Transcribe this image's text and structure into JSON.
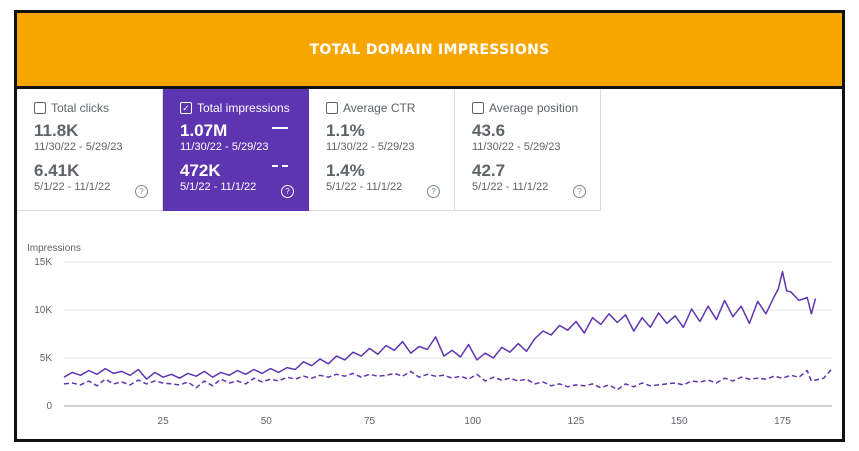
{
  "banner": {
    "title": "TOTAL DOMAIN IMPRESSIONS"
  },
  "cards": [
    {
      "label": "Total clicks",
      "checked": false,
      "current_value": "11.8K",
      "current_range": "11/30/22 - 5/29/23",
      "previous_value": "6.41K",
      "previous_range": "5/1/22 - 11/1/22",
      "help": "?"
    },
    {
      "label": "Total impressions",
      "checked": true,
      "current_value": "1.07M",
      "current_range": "11/30/22 - 5/29/23",
      "previous_value": "472K",
      "previous_range": "5/1/22 - 11/1/22",
      "help": "?"
    },
    {
      "label": "Average CTR",
      "checked": false,
      "current_value": "1.1%",
      "current_range": "11/30/22 - 5/29/23",
      "previous_value": "1.4%",
      "previous_range": "5/1/22 - 11/1/22",
      "help": "?"
    },
    {
      "label": "Average position",
      "checked": false,
      "current_value": "43.6",
      "current_range": "11/30/22 - 5/29/23",
      "previous_value": "42.7",
      "previous_range": "5/1/22 - 11/1/22",
      "help": "?"
    }
  ],
  "colors": {
    "banner": "#f7a600",
    "accent": "#5e35b1",
    "text": "#5f6368"
  },
  "chart_data": {
    "type": "line",
    "ylabel": "Impressions",
    "ylim": [
      0,
      15000
    ],
    "xlim": [
      1,
      187
    ],
    "y_ticks": [
      0,
      5000,
      10000,
      15000
    ],
    "y_tick_labels": [
      "0",
      "5K",
      "10K",
      "15K"
    ],
    "x_ticks": [
      25,
      50,
      75,
      100,
      125,
      150,
      175
    ],
    "grid": true,
    "series": [
      {
        "style": "solid",
        "color": "#5e35b1",
        "x": [
          1,
          3,
          5,
          7,
          9,
          11,
          13,
          15,
          17,
          19,
          21,
          23,
          25,
          27,
          29,
          31,
          33,
          35,
          37,
          39,
          41,
          43,
          45,
          47,
          49,
          51,
          53,
          55,
          57,
          59,
          61,
          63,
          65,
          67,
          69,
          71,
          73,
          75,
          77,
          79,
          81,
          83,
          85,
          87,
          89,
          91,
          93,
          95,
          97,
          99,
          101,
          103,
          105,
          107,
          109,
          111,
          113,
          115,
          117,
          119,
          121,
          123,
          125,
          127,
          129,
          131,
          133,
          135,
          137,
          139,
          141,
          143,
          145,
          147,
          149,
          151,
          153,
          155,
          157,
          159,
          161,
          163,
          165,
          167,
          169,
          171,
          173,
          174,
          175,
          176,
          177,
          179,
          181,
          182,
          183
        ],
        "values": [
          3000,
          3500,
          3200,
          3700,
          3300,
          3900,
          3400,
          3600,
          3200,
          3800,
          2800,
          3500,
          3000,
          3300,
          2900,
          3400,
          3100,
          3600,
          3000,
          3500,
          3200,
          3700,
          3300,
          3800,
          3400,
          3900,
          3500,
          4000,
          3800,
          4600,
          4200,
          4900,
          4400,
          5200,
          4800,
          5600,
          5200,
          6000,
          5400,
          6300,
          5800,
          6700,
          5500,
          6200,
          5900,
          7200,
          5200,
          5800,
          5100,
          6400,
          4800,
          5500,
          5000,
          6100,
          5600,
          6500,
          5700,
          7000,
          7800,
          7400,
          8400,
          7900,
          8800,
          7600,
          9200,
          8500,
          9600,
          8700,
          9500,
          7800,
          9200,
          8200,
          9700,
          8600,
          9400,
          8200,
          10100,
          8800,
          10400,
          9000,
          11000,
          9300,
          10400,
          8600,
          10900,
          9600,
          11400,
          12200,
          14000,
          12000,
          11900,
          11000,
          11300,
          9600,
          11200
        ]
      },
      {
        "style": "dashed",
        "color": "#5e35b1",
        "x": [
          1,
          3,
          5,
          7,
          9,
          11,
          13,
          15,
          17,
          19,
          21,
          23,
          25,
          27,
          29,
          31,
          33,
          35,
          37,
          39,
          41,
          43,
          45,
          47,
          49,
          51,
          53,
          55,
          57,
          59,
          61,
          63,
          65,
          67,
          69,
          71,
          73,
          75,
          77,
          79,
          81,
          83,
          85,
          87,
          89,
          91,
          93,
          95,
          97,
          99,
          101,
          103,
          105,
          107,
          109,
          111,
          113,
          115,
          117,
          119,
          121,
          123,
          125,
          127,
          129,
          131,
          133,
          135,
          137,
          139,
          141,
          143,
          145,
          147,
          149,
          151,
          153,
          155,
          157,
          159,
          161,
          163,
          165,
          167,
          169,
          171,
          173,
          175,
          177,
          179,
          181,
          182,
          183,
          185,
          187
        ],
        "values": [
          2300,
          2400,
          2200,
          2600,
          2100,
          2800,
          2300,
          2500,
          2200,
          2700,
          2300,
          2600,
          2400,
          2300,
          2200,
          2500,
          1900,
          2600,
          2100,
          2800,
          2400,
          2600,
          2300,
          2900,
          2500,
          2800,
          2600,
          3000,
          2800,
          3100,
          2900,
          3200,
          3000,
          3300,
          3100,
          3400,
          3000,
          3300,
          3100,
          3200,
          3400,
          3100,
          3600,
          3000,
          3300,
          3100,
          3200,
          2900,
          3100,
          2800,
          3300,
          2600,
          3000,
          2700,
          2900,
          2600,
          2800,
          2300,
          2500,
          2100,
          2300,
          2000,
          2200,
          2100,
          2300,
          1900,
          2200,
          1700,
          2300,
          2000,
          2400,
          2100,
          2200,
          2300,
          2400,
          2200,
          2600,
          2500,
          2700,
          2400,
          2900,
          2600,
          3000,
          2800,
          2900,
          2800,
          3100,
          2900,
          3200,
          3000,
          3700,
          2600,
          2700,
          2900,
          3900
        ]
      }
    ]
  }
}
